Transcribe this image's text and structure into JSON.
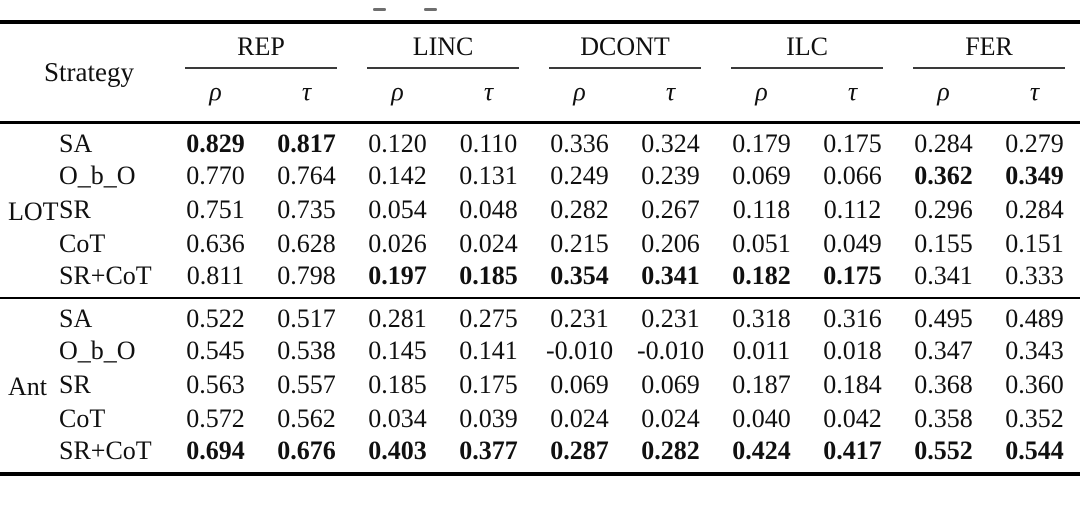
{
  "table": {
    "strategy_header": "Strategy",
    "groups": [
      {
        "label": "REP"
      },
      {
        "label": "LINC"
      },
      {
        "label": "DCONT"
      },
      {
        "label": "ILC"
      },
      {
        "label": "FER"
      }
    ],
    "sub_headers": {
      "rho": "ρ",
      "tau": "τ"
    },
    "row_groups": [
      {
        "label": "LOT",
        "rows": [
          {
            "strategy": "SA",
            "values": [
              "0.829",
              "0.817",
              "0.120",
              "0.110",
              "0.336",
              "0.324",
              "0.179",
              "0.175",
              "0.284",
              "0.279"
            ],
            "bold": [
              0,
              1
            ]
          },
          {
            "strategy": "O_b_O",
            "values": [
              "0.770",
              "0.764",
              "0.142",
              "0.131",
              "0.249",
              "0.239",
              "0.069",
              "0.066",
              "0.362",
              "0.349"
            ],
            "bold": [
              8,
              9
            ]
          },
          {
            "strategy": "SR",
            "values": [
              "0.751",
              "0.735",
              "0.054",
              "0.048",
              "0.282",
              "0.267",
              "0.118",
              "0.112",
              "0.296",
              "0.284"
            ],
            "bold": []
          },
          {
            "strategy": "CoT",
            "values": [
              "0.636",
              "0.628",
              "0.026",
              "0.024",
              "0.215",
              "0.206",
              "0.051",
              "0.049",
              "0.155",
              "0.151"
            ],
            "bold": []
          },
          {
            "strategy": "SR+CoT",
            "values": [
              "0.811",
              "0.798",
              "0.197",
              "0.185",
              "0.354",
              "0.341",
              "0.182",
              "0.175",
              "0.341",
              "0.333"
            ],
            "bold": [
              2,
              3,
              4,
              5,
              6,
              7
            ]
          }
        ]
      },
      {
        "label": "Ant",
        "rows": [
          {
            "strategy": "SA",
            "values": [
              "0.522",
              "0.517",
              "0.281",
              "0.275",
              "0.231",
              "0.231",
              "0.318",
              "0.316",
              "0.495",
              "0.489"
            ],
            "bold": []
          },
          {
            "strategy": "O_b_O",
            "values": [
              "0.545",
              "0.538",
              "0.145",
              "0.141",
              "-0.010",
              "-0.010",
              "0.011",
              "0.018",
              "0.347",
              "0.343"
            ],
            "bold": []
          },
          {
            "strategy": "SR",
            "values": [
              "0.563",
              "0.557",
              "0.185",
              "0.175",
              "0.069",
              "0.069",
              "0.187",
              "0.184",
              "0.368",
              "0.360"
            ],
            "bold": []
          },
          {
            "strategy": "CoT",
            "values": [
              "0.572",
              "0.562",
              "0.034",
              "0.039",
              "0.024",
              "0.024",
              "0.040",
              "0.042",
              "0.358",
              "0.352"
            ],
            "bold": []
          },
          {
            "strategy": "SR+CoT",
            "values": [
              "0.694",
              "0.676",
              "0.403",
              "0.377",
              "0.287",
              "0.282",
              "0.424",
              "0.417",
              "0.552",
              "0.544"
            ],
            "bold": [
              0,
              1,
              2,
              3,
              4,
              5,
              6,
              7,
              8,
              9
            ]
          }
        ]
      }
    ]
  }
}
